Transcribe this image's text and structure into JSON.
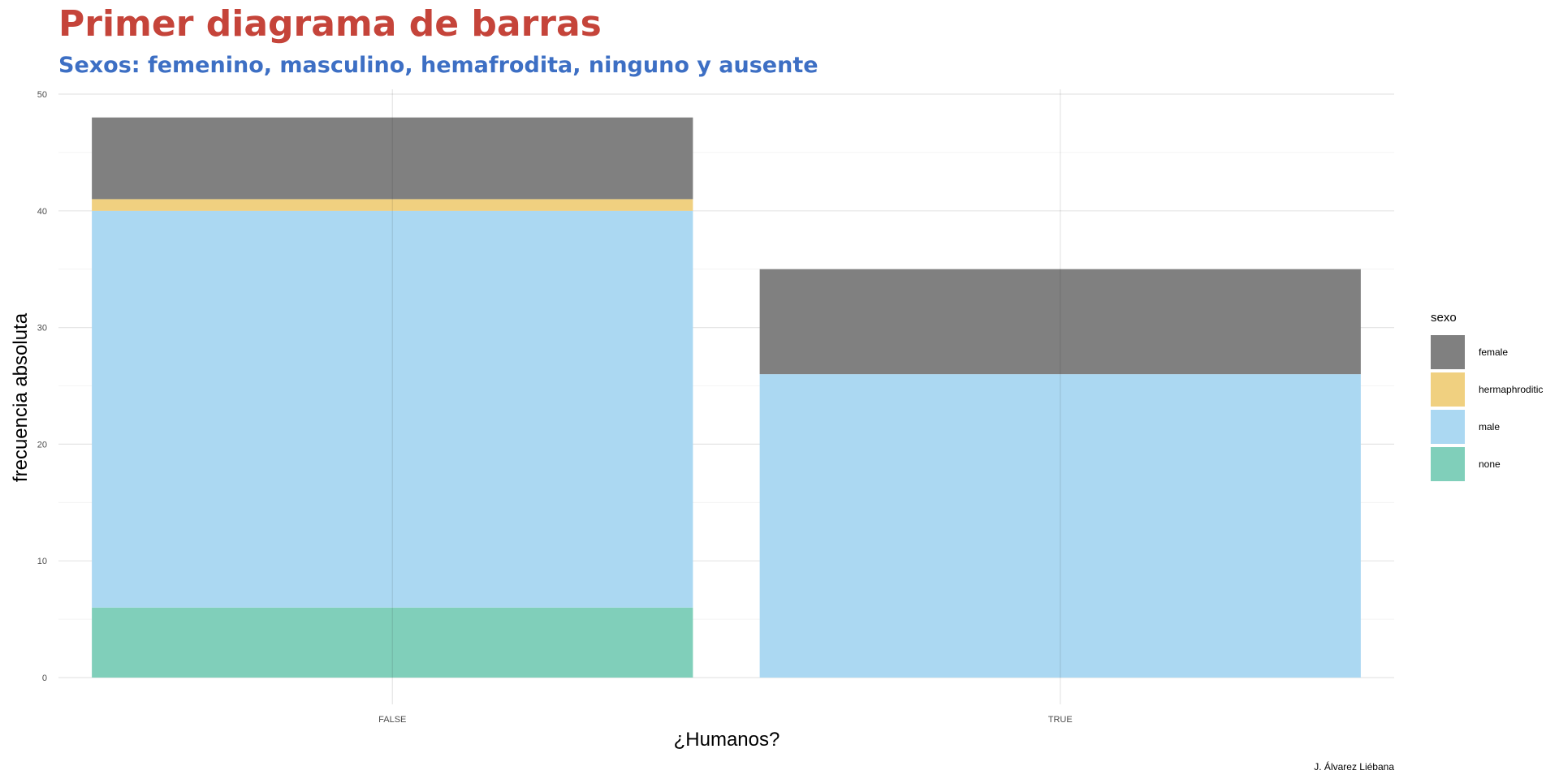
{
  "chart_data": {
    "type": "bar",
    "stacked": true,
    "title": "Primer diagrama de barras",
    "subtitle": "Sexos: femenino, masculino, hemafrodita, ninguno y ausente",
    "xlabel": "¿Humanos?",
    "ylabel": "frecuencia absoluta",
    "caption": "J. Álvarez Liébana",
    "categories": [
      "FALSE",
      "TRUE"
    ],
    "ylim": [
      0,
      50
    ],
    "yticks": [
      0,
      10,
      20,
      30,
      40,
      50
    ],
    "grid": true,
    "legend_title": "sexo",
    "legend_position": "right",
    "series": [
      {
        "name": "female",
        "color": "#808080",
        "values": [
          7,
          9
        ]
      },
      {
        "name": "hermaphroditic",
        "color": "#F0D080",
        "values": [
          1,
          0
        ]
      },
      {
        "name": "male",
        "color": "#ABD8F2",
        "values": [
          34,
          26
        ]
      },
      {
        "name": "none",
        "color": "#80CFBA",
        "values": [
          6,
          0
        ]
      }
    ],
    "colors": {
      "title": "#C5443A",
      "subtitle": "#3D6FC4",
      "grid": "#e5e5e5"
    }
  }
}
